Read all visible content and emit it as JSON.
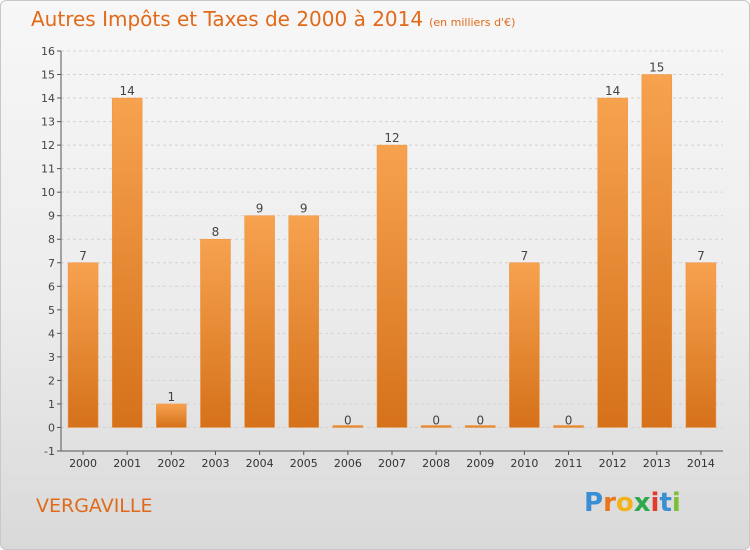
{
  "header": {
    "title": "Autres Impôts et Taxes de 2000 à 2014",
    "unit": "(en milliers d'€)"
  },
  "footer": {
    "location": "VERGAVILLE",
    "logo_letters": [
      "P",
      "r",
      "o",
      "x",
      "i",
      "t",
      "i"
    ],
    "logo_colors": [
      "#3a8fd4",
      "#e9761c",
      "#f2b21c",
      "#2fa84b",
      "#e23a2c",
      "#3a8fd4",
      "#7cbf3a"
    ]
  },
  "chart_data": {
    "type": "bar",
    "categories": [
      "2000",
      "2001",
      "2002",
      "2003",
      "2004",
      "2005",
      "2006",
      "2007",
      "2008",
      "2009",
      "2010",
      "2011",
      "2012",
      "2013",
      "2014"
    ],
    "values": [
      7,
      14,
      1,
      8,
      9,
      9,
      0,
      12,
      0,
      0,
      7,
      0,
      14,
      15,
      7
    ],
    "ylim": [
      -1,
      16
    ],
    "yticks": [
      -1,
      0,
      1,
      2,
      3,
      4,
      5,
      6,
      7,
      8,
      9,
      10,
      11,
      12,
      13,
      14,
      15,
      16
    ],
    "grid": true,
    "bar_color_light": "#f7a24f",
    "bar_color_dark": "#d5711a"
  }
}
